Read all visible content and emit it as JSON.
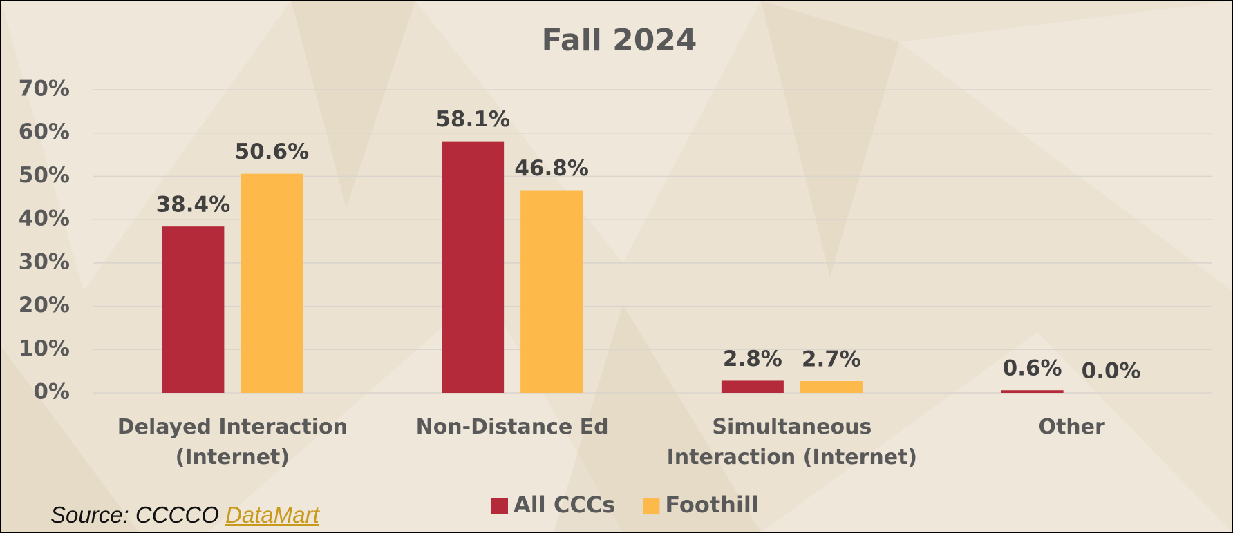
{
  "chart_data": {
    "type": "bar",
    "title": "Fall 2024",
    "categories": [
      "Delayed Interaction\n(Internet)",
      "Non-Distance Ed",
      "Simultaneous\nInteraction (Internet)",
      "Other"
    ],
    "series": [
      {
        "name": "All CCCs",
        "color": "#b52a3a",
        "values": [
          38.4,
          58.1,
          2.8,
          0.6
        ],
        "value_labels": [
          "38.4%",
          "58.1%",
          "2.8%",
          "0.6%"
        ]
      },
      {
        "name": "Foothill",
        "color": "#fdb94a",
        "values": [
          50.6,
          46.8,
          2.7,
          0.0
        ],
        "value_labels": [
          "50.6%",
          "46.8%",
          "2.7%",
          "0.0%"
        ]
      }
    ],
    "ylim": [
      0,
      70
    ],
    "yticks": [
      {
        "value": 0,
        "label": "0%"
      },
      {
        "value": 10,
        "label": "10%"
      },
      {
        "value": 20,
        "label": "20%"
      },
      {
        "value": 30,
        "label": "30%"
      },
      {
        "value": 40,
        "label": "40%"
      },
      {
        "value": 50,
        "label": "50%"
      },
      {
        "value": 60,
        "label": "60%"
      },
      {
        "value": 70,
        "label": "70%"
      }
    ],
    "grid": true,
    "legend": "bottom",
    "source": "Source: CCCCO",
    "source_link": "DataMart"
  }
}
